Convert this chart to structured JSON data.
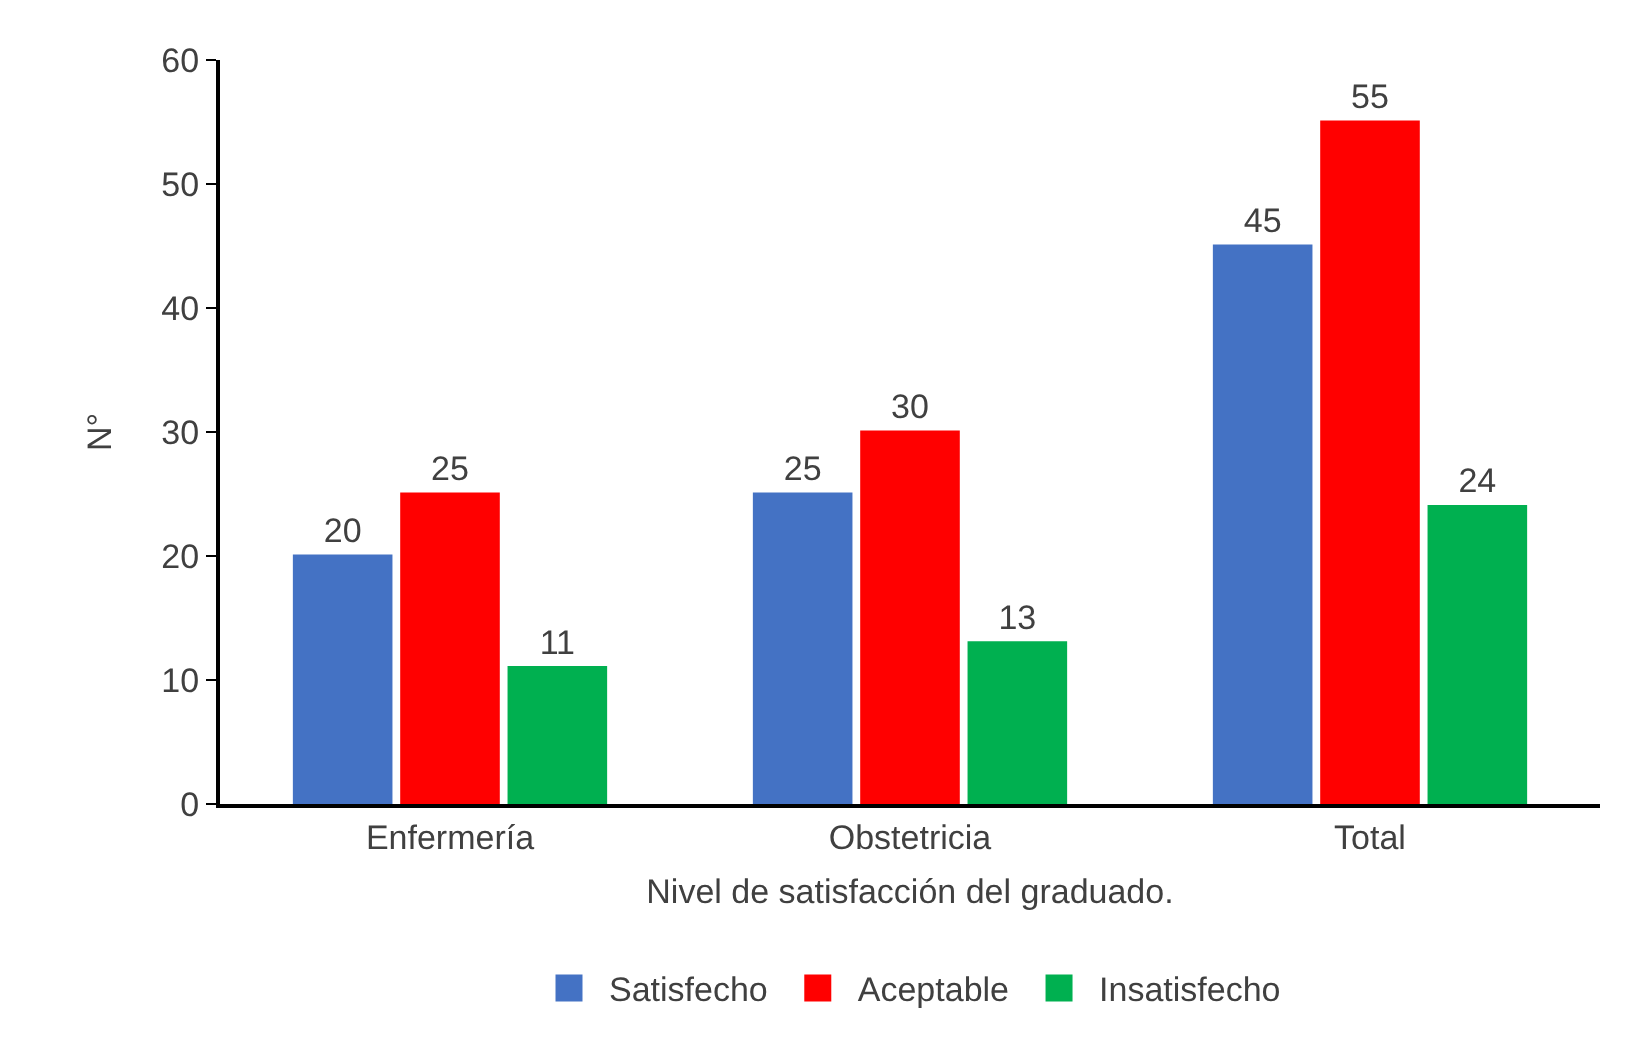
{
  "chart_data": {
    "type": "bar",
    "categories": [
      "Enfermería",
      "Obstetricia",
      "Total"
    ],
    "series": [
      {
        "name": "Satisfecho",
        "color": "#4472c4",
        "values": [
          20,
          25,
          45
        ]
      },
      {
        "name": "Aceptable",
        "color": "#ff0000",
        "values": [
          25,
          30,
          55
        ]
      },
      {
        "name": "Insatisfecho",
        "color": "#00b050",
        "values": [
          11,
          13,
          24
        ]
      }
    ],
    "ylabel": "N°",
    "xlabel": "Nivel de satisfacción del graduado.",
    "ylim": [
      0,
      60
    ],
    "yticks": [
      0,
      10,
      20,
      30,
      40,
      50,
      60
    ],
    "grid": false,
    "legend": "bottom",
    "data_labels": true
  }
}
